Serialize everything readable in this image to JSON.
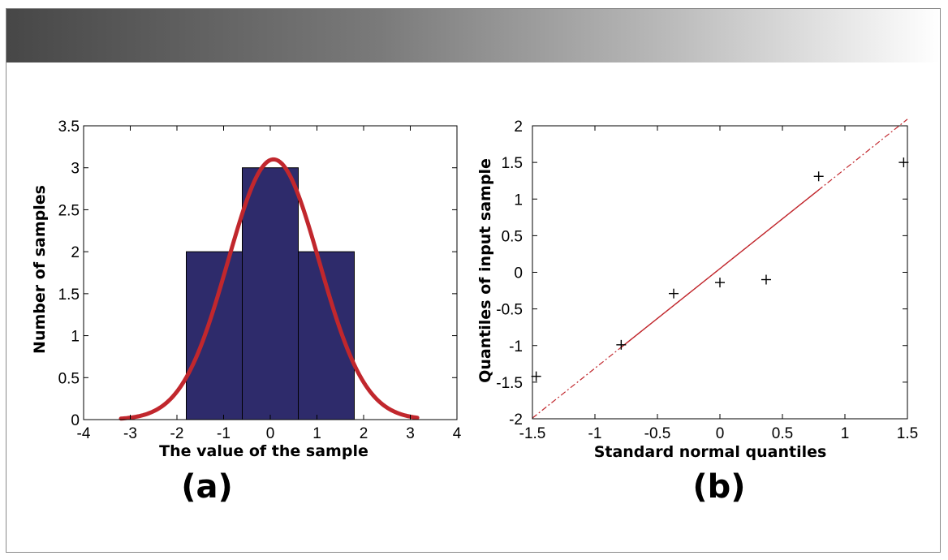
{
  "chart_data": [
    {
      "id": "a",
      "type": "bar",
      "panel_label": "(a)",
      "xlabel": "The value of the sample",
      "ylabel": "Number of samples",
      "xlim": [
        -4,
        4
      ],
      "ylim": [
        0,
        3.5
      ],
      "xticks": [
        "-4",
        "-3",
        "-2",
        "-1",
        "0",
        "1",
        "2",
        "3",
        "4"
      ],
      "yticks": [
        "0",
        "0.5",
        "1",
        "1.5",
        "2",
        "2.5",
        "3",
        "3.5"
      ],
      "bins": [
        {
          "from": -1.8,
          "to": -0.6,
          "count": 2
        },
        {
          "from": -0.6,
          "to": 0.6,
          "count": 3
        },
        {
          "from": 0.6,
          "to": 1.8,
          "count": 2
        }
      ],
      "fit_curve": {
        "mean": 0.07,
        "sd": 0.98,
        "peak": 3.1,
        "x_range": [
          -3.2,
          3.15
        ]
      },
      "colors": {
        "bar": "#2e2b6b",
        "curve": "#c1272d"
      }
    },
    {
      "id": "b",
      "type": "scatter",
      "panel_label": "(b)",
      "xlabel": "Standard normal quantiles",
      "ylabel": "Quantiles of input sample",
      "xlim": [
        -1.5,
        1.5
      ],
      "ylim": [
        -2,
        2
      ],
      "xticks": [
        "-1.5",
        "-1",
        "-0.5",
        "0",
        "0.5",
        "1",
        "1.5"
      ],
      "yticks": [
        "-2",
        "-1.5",
        "-1",
        "-0.5",
        "0",
        "0.5",
        "1",
        "1.5",
        "2"
      ],
      "points": [
        {
          "x": -1.47,
          "y": -1.42
        },
        {
          "x": -0.79,
          "y": -0.99
        },
        {
          "x": -0.37,
          "y": -0.29
        },
        {
          "x": 0.0,
          "y": -0.14
        },
        {
          "x": 0.37,
          "y": -0.1
        },
        {
          "x": 0.79,
          "y": 1.31
        },
        {
          "x": 1.47,
          "y": 1.5
        }
      ],
      "reference_line": {
        "slope": 1.36,
        "intercept": 0.05,
        "solid_x_range": [
          -0.79,
          0.79
        ],
        "dashed_x_range": [
          -1.5,
          1.5
        ]
      },
      "colors": {
        "marker": "#000000",
        "line": "#c1272d"
      }
    }
  ]
}
